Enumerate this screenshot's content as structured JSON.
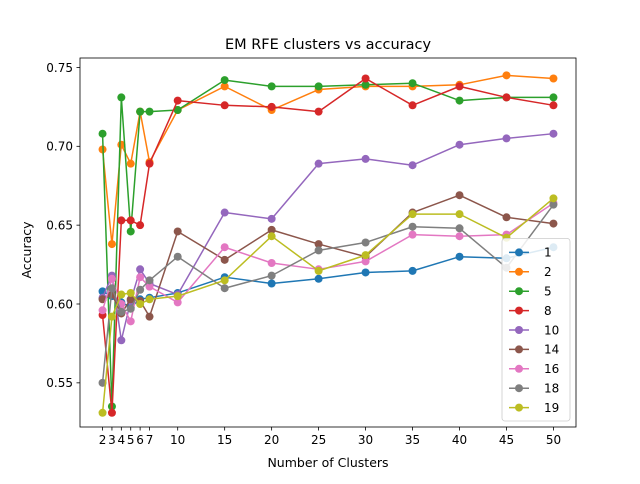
{
  "chart_data": {
    "type": "line",
    "title": "EM RFE clusters vs accuracy",
    "xlabel": "Number of Clusters",
    "ylabel": "Accuracy",
    "xlim": [
      -0.4,
      52.4
    ],
    "ylim": [
      0.522,
      0.756
    ],
    "xticks": [
      2,
      3,
      4,
      5,
      6,
      7,
      10,
      15,
      20,
      25,
      30,
      35,
      40,
      45,
      50
    ],
    "yticks": [
      0.55,
      0.6,
      0.65,
      0.7,
      0.75
    ],
    "ytick_labels": [
      "0.55",
      "0.60",
      "0.65",
      "0.70",
      "0.75"
    ],
    "grid": false,
    "legend_position": "lower-right",
    "x": [
      2,
      3,
      4,
      5,
      6,
      7,
      10,
      15,
      20,
      25,
      30,
      35,
      40,
      45,
      50
    ],
    "series": [
      {
        "name": "1",
        "color": "#1f77b4",
        "values": [
          0.608,
          0.605,
          0.601,
          0.598,
          0.603,
          0.604,
          0.607,
          0.617,
          0.613,
          0.616,
          0.62,
          0.621,
          0.63,
          0.629,
          0.636
        ]
      },
      {
        "name": "2",
        "color": "#ff7f0e",
        "values": [
          0.698,
          0.638,
          0.701,
          0.689,
          0.722,
          0.69,
          0.723,
          0.738,
          0.723,
          0.736,
          0.738,
          0.738,
          0.739,
          0.745,
          0.743
        ]
      },
      {
        "name": "5",
        "color": "#2ca02c",
        "values": [
          0.708,
          0.535,
          0.731,
          0.646,
          0.722,
          0.722,
          0.723,
          0.742,
          0.738,
          0.738,
          0.739,
          0.74,
          0.729,
          0.731,
          0.731
        ]
      },
      {
        "name": "8",
        "color": "#d62728",
        "values": [
          0.593,
          0.531,
          0.653,
          0.653,
          0.65,
          0.689,
          0.729,
          0.726,
          0.725,
          0.722,
          0.743,
          0.726,
          0.738,
          0.731,
          0.726
        ]
      },
      {
        "name": "10",
        "color": "#9467bd",
        "values": [
          0.604,
          0.618,
          0.577,
          0.602,
          0.622,
          0.613,
          0.606,
          0.658,
          0.654,
          0.689,
          0.692,
          0.688,
          0.701,
          0.705,
          0.708
        ]
      },
      {
        "name": "14",
        "color": "#8c564b",
        "values": [
          0.603,
          0.606,
          0.594,
          0.603,
          0.602,
          0.592,
          0.646,
          0.628,
          0.647,
          0.638,
          0.63,
          0.658,
          0.669,
          0.655,
          0.651
        ]
      },
      {
        "name": "16",
        "color": "#e377c2",
        "values": [
          0.596,
          0.616,
          0.6,
          0.589,
          0.617,
          0.611,
          0.601,
          0.636,
          0.626,
          0.622,
          0.627,
          0.644,
          0.643,
          0.644,
          0.664
        ]
      },
      {
        "name": "18",
        "color": "#7f7f7f",
        "values": [
          0.55,
          0.61,
          0.595,
          0.597,
          0.609,
          0.615,
          0.63,
          0.61,
          0.618,
          0.634,
          0.639,
          0.649,
          0.648,
          0.623,
          0.663
        ]
      },
      {
        "name": "19",
        "color": "#bcbd22",
        "values": [
          0.531,
          0.592,
          0.606,
          0.607,
          0.6,
          0.603,
          0.605,
          0.615,
          0.643,
          0.621,
          0.631,
          0.657,
          0.657,
          0.642,
          0.667
        ]
      }
    ]
  }
}
